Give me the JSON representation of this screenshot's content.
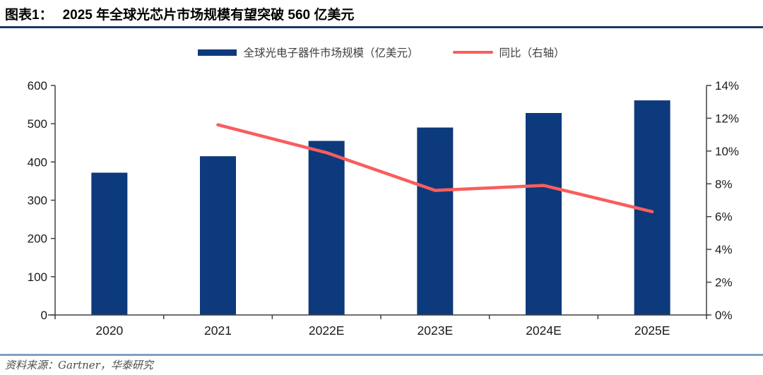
{
  "header": {
    "title_prefix": "图表1：",
    "title_text": "2025 年全球光芯片市场规模有望突破 560 亿美元"
  },
  "legend": {
    "items": [
      {
        "label": "全球光电子器件市场规模（亿美元）",
        "type": "bar",
        "color": "#0d3a7c"
      },
      {
        "label": "同比（右轴）",
        "type": "line",
        "color": "#f95d5d"
      }
    ]
  },
  "footer": {
    "source": "资料来源：Gartner，华泰研究"
  },
  "colors": {
    "bar": "#0d3a7c",
    "line": "#f95d5d",
    "title_rule": "#1f3864",
    "footer_rule": "#7fa0c4",
    "axis": "#404040",
    "tick_text": "#1a1a1a"
  },
  "chart_data": {
    "type": "bar",
    "title": "2025 年全球光芯片市场规模有望突破 560 亿美元",
    "categories": [
      "2020",
      "2021",
      "2022E",
      "2023E",
      "2024E",
      "2025E"
    ],
    "series": [
      {
        "name": "全球光电子器件市场规模（亿美元）",
        "type": "bar",
        "axis": "left",
        "color": "#0d3a7c",
        "values": [
          372,
          415,
          455,
          490,
          528,
          561
        ]
      },
      {
        "name": "同比（右轴）",
        "type": "line",
        "axis": "right",
        "color": "#f95d5d",
        "values": [
          null,
          11.6,
          9.9,
          7.6,
          7.9,
          6.3
        ]
      }
    ],
    "left_axis": {
      "min": 0,
      "max": 600,
      "step": 100,
      "tick_labels": [
        "0",
        "100",
        "200",
        "300",
        "400",
        "500",
        "600"
      ]
    },
    "right_axis": {
      "min": 0,
      "max": 14,
      "step": 2,
      "unit": "%",
      "tick_labels": [
        "0%",
        "2%",
        "4%",
        "6%",
        "8%",
        "10%",
        "12%",
        "14%"
      ]
    },
    "grid": false,
    "legend_position": "top"
  }
}
